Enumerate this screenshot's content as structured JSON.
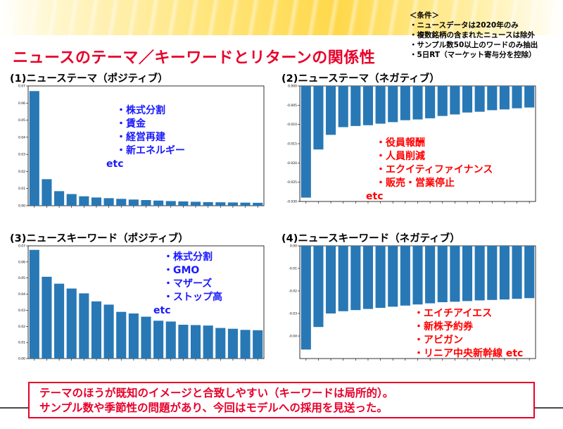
{
  "header": {
    "title": "ニュースのテーマ／キーワードとリターンの関係性"
  },
  "conditions": {
    "heading": "＜条件＞",
    "items": [
      "・ニュースデータは2020年のみ",
      "・複数銘柄の含まれたニュースは除外",
      "・サンプル数50以上のワードのみ抽出",
      "・5日RT（マーケット寄与分を控除）"
    ]
  },
  "panels": [
    {
      "title": "(1)ニューステーマ（ポジティブ）",
      "keywords": [
        "・株式分割",
        "・賃金",
        "・経営再建",
        "・新エネルギー"
      ],
      "etc": "etc"
    },
    {
      "title": "(2)ニューステーマ（ネガティブ）",
      "keywords": [
        "・役員報酬",
        "・人員削減",
        "・エクイティファイナンス",
        "・販売・営業停止"
      ],
      "etc": "etc"
    },
    {
      "title": "(3)ニュースキーワード（ポジティブ）",
      "keywords": [
        "・株式分割",
        "・GMO",
        "・マザーズ",
        "・ストップ高"
      ],
      "etc": "etc"
    },
    {
      "title": "(4)ニュースキーワード（ネガティブ）",
      "keywords": [
        "・エイチアイエス",
        "・新株予約券",
        "・アビガン",
        "・リニア中央新幹線 etc"
      ],
      "etc": ""
    }
  ],
  "summary": {
    "line1": "テーマのほうが既知のイメージと合致しやすい（キーワードは局所的）。",
    "line2": "サンプル数や季節性の問題があり、今回はモデルへの採用を見送った。"
  },
  "colors": {
    "bar": "#2878b5",
    "title_red": "#e8002a",
    "keyword_blue": "#1a1aff",
    "keyword_red": "#ff0000"
  },
  "chart_data": [
    {
      "type": "bar",
      "ylim": [
        0,
        0.07
      ],
      "yticks": [
        0.0,
        0.01,
        0.02,
        0.03,
        0.04,
        0.05,
        0.06,
        0.07
      ],
      "ytick_labels": [
        "0.00",
        "0.01",
        "0.02",
        "0.03",
        "0.04",
        "0.05",
        "0.06",
        "0.07"
      ],
      "values": [
        0.067,
        0.0155,
        0.0085,
        0.0068,
        0.0055,
        0.0048,
        0.0044,
        0.004,
        0.0036,
        0.0033,
        0.003,
        0.0027,
        0.0025,
        0.0023,
        0.0021,
        0.002,
        0.0019,
        0.0018,
        0.0017
      ]
    },
    {
      "type": "bar",
      "ylim": [
        -0.03,
        0
      ],
      "yticks": [
        0.0,
        -0.005,
        -0.01,
        -0.015,
        -0.02,
        -0.025,
        -0.03
      ],
      "ytick_labels": [
        "0.000",
        "-0.005",
        "-0.010",
        "-0.015",
        "-0.020",
        "-0.025",
        "-0.030"
      ],
      "values": [
        -0.029,
        -0.0165,
        -0.0127,
        -0.0107,
        -0.0104,
        -0.0102,
        -0.0098,
        -0.0094,
        -0.0089,
        -0.0087,
        -0.0084,
        -0.0078,
        -0.0074,
        -0.0069,
        -0.0067,
        -0.0063,
        -0.0061,
        -0.0058,
        -0.0056
      ]
    },
    {
      "type": "bar",
      "ylim": [
        0,
        0.07
      ],
      "yticks": [
        0.0,
        0.01,
        0.02,
        0.03,
        0.04,
        0.05,
        0.06,
        0.07
      ],
      "ytick_labels": [
        "0.00",
        "0.01",
        "0.02",
        "0.03",
        "0.04",
        "0.05",
        "0.06",
        "0.07"
      ],
      "values": [
        0.0675,
        0.0508,
        0.0465,
        0.0435,
        0.0405,
        0.0355,
        0.0335,
        0.029,
        0.028,
        0.026,
        0.0235,
        0.023,
        0.021,
        0.0208,
        0.0205,
        0.019,
        0.0185,
        0.0178,
        0.0176
      ]
    },
    {
      "type": "bar",
      "ylim": [
        -0.05,
        0
      ],
      "yticks": [
        0.0,
        -0.01,
        -0.02,
        -0.03,
        -0.04
      ],
      "ytick_labels": [
        "0.00",
        "-0.01",
        "-0.02",
        "-0.03",
        "-0.04"
      ],
      "values": [
        -0.046,
        -0.036,
        -0.03,
        -0.029,
        -0.0285,
        -0.028,
        -0.0275,
        -0.027,
        -0.0265,
        -0.026,
        -0.0255,
        -0.025,
        -0.0248,
        -0.0245,
        -0.0242,
        -0.024,
        -0.0238,
        -0.0235,
        -0.0232
      ]
    }
  ]
}
